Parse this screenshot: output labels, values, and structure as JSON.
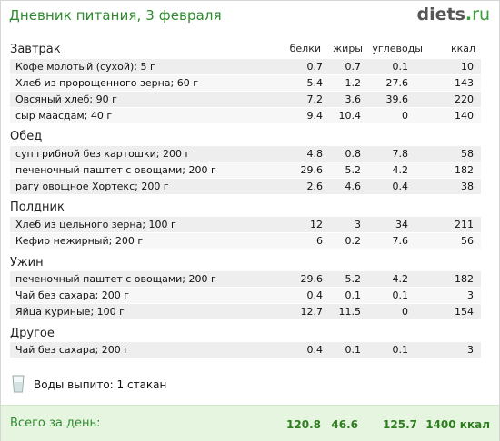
{
  "title": "Дневник питания, 3 февраля",
  "logo": {
    "name": "diets",
    "dot": ".",
    "tld": "ru"
  },
  "columns": {
    "protein": "белки",
    "fat": "жиры",
    "carbs": "углеводы",
    "kcal": "ккал"
  },
  "sections": [
    {
      "title": "Завтрак",
      "rows": [
        {
          "name": "Кофе молотый (сухой); 5 г",
          "protein": "0.7",
          "fat": "0.7",
          "carbs": "0.1",
          "kcal": "10"
        },
        {
          "name": "Хлеб из пророщенного зерна; 60 г",
          "protein": "5.4",
          "fat": "1.2",
          "carbs": "27.6",
          "kcal": "143"
        },
        {
          "name": "Овсяный хлеб; 90 г",
          "protein": "7.2",
          "fat": "3.6",
          "carbs": "39.6",
          "kcal": "220"
        },
        {
          "name": "сыр маасдам; 40 г",
          "protein": "9.4",
          "fat": "10.4",
          "carbs": "0",
          "kcal": "140"
        }
      ]
    },
    {
      "title": "Обед",
      "rows": [
        {
          "name": "суп грибной без картошки; 200 г",
          "protein": "4.8",
          "fat": "0.8",
          "carbs": "7.8",
          "kcal": "58"
        },
        {
          "name": "печеночный паштет с овощами; 200 г",
          "protein": "29.6",
          "fat": "5.2",
          "carbs": "4.2",
          "kcal": "182"
        },
        {
          "name": "рагу овощное Хортекс; 200 г",
          "protein": "2.6",
          "fat": "4.6",
          "carbs": "0.4",
          "kcal": "38"
        }
      ]
    },
    {
      "title": "Полдник",
      "rows": [
        {
          "name": "Хлеб из цельного зерна; 100 г",
          "protein": "12",
          "fat": "3",
          "carbs": "34",
          "kcal": "211"
        },
        {
          "name": "Кефир нежирный; 200 г",
          "protein": "6",
          "fat": "0.2",
          "carbs": "7.6",
          "kcal": "56"
        }
      ]
    },
    {
      "title": "Ужин",
      "rows": [
        {
          "name": "печеночный паштет с овощами; 200 г",
          "protein": "29.6",
          "fat": "5.2",
          "carbs": "4.2",
          "kcal": "182"
        },
        {
          "name": "Чай без сахара; 200 г",
          "protein": "0.4",
          "fat": "0.1",
          "carbs": "0.1",
          "kcal": "3"
        },
        {
          "name": "Яйца куриные; 100 г",
          "protein": "12.7",
          "fat": "11.5",
          "carbs": "0",
          "kcal": "154"
        }
      ]
    },
    {
      "title": "Другое",
      "rows": [
        {
          "name": "Чай без сахара; 200 г",
          "protein": "0.4",
          "fat": "0.1",
          "carbs": "0.1",
          "kcal": "3"
        }
      ]
    }
  ],
  "water": {
    "text": "Воды выпито: 1 стакан",
    "icon": "water-glass-icon"
  },
  "total": {
    "label": "Всего за день:",
    "protein": "120.8",
    "fat": "46.6",
    "carbs": "125.7",
    "kcal": "1400 ккал"
  },
  "colors": {
    "accent": "#2f8a2f",
    "row": "#eeeeee",
    "total_bg": "#e6f5e0"
  }
}
